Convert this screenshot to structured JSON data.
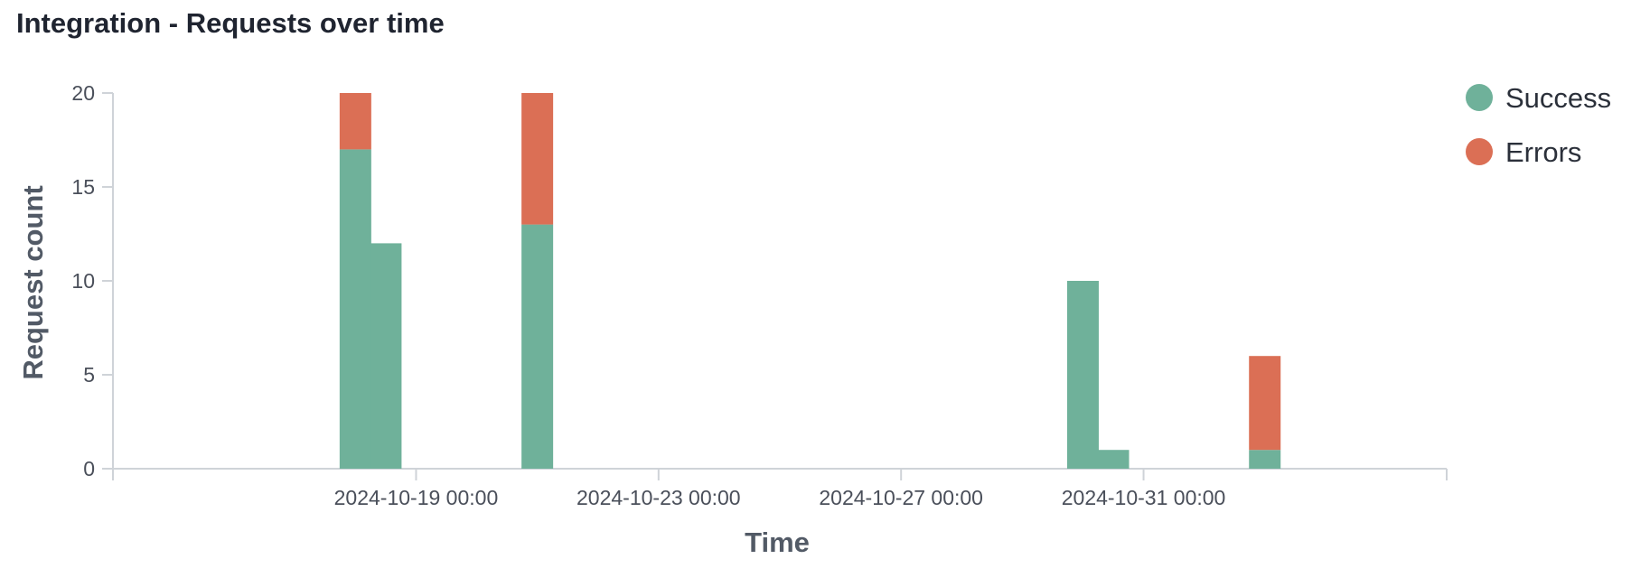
{
  "title": "Integration - Requests over time",
  "colors": {
    "success": "#6fb19a",
    "errors": "#db6f55",
    "axis": "#cfd3d8",
    "text": "#4a4f5a"
  },
  "chart_data": {
    "type": "bar",
    "stacked": true,
    "title": "Integration - Requests over time",
    "xlabel": "Time",
    "ylabel": "Request count",
    "x_scale": "time",
    "xlim": [
      "2024-10-14T00:00",
      "2024-11-05T00:00"
    ],
    "ylim": [
      0,
      20
    ],
    "y_ticks": [
      0,
      5,
      10,
      15,
      20
    ],
    "x_ticks": [
      {
        "value": "2024-10-19T00:00",
        "label": "2024-10-19 00:00"
      },
      {
        "value": "2024-10-23T00:00",
        "label": "2024-10-23 00:00"
      },
      {
        "value": "2024-10-27T00:00",
        "label": "2024-10-27 00:00"
      },
      {
        "value": "2024-10-31T00:00",
        "label": "2024-10-31 00:00"
      }
    ],
    "categories": [
      "2024-10-18T00:00",
      "2024-10-18T12:00",
      "2024-10-21T00:00",
      "2024-10-30T00:00",
      "2024-10-30T12:00",
      "2024-11-02T00:00"
    ],
    "series": [
      {
        "name": "Success",
        "color": "#6fb19a",
        "values": [
          17,
          12,
          13,
          10,
          1,
          1
        ]
      },
      {
        "name": "Errors",
        "color": "#db6f55",
        "values": [
          3,
          0,
          7,
          0,
          0,
          5
        ]
      }
    ],
    "legend": "top-right",
    "grid": false
  }
}
